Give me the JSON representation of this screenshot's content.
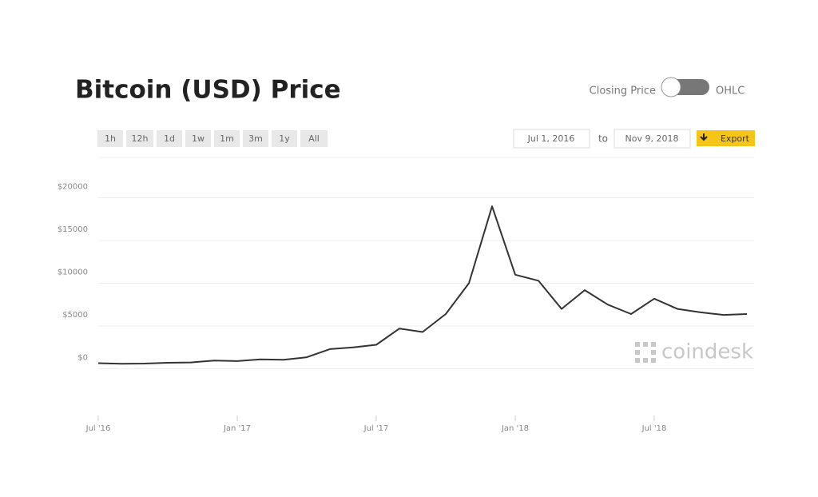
{
  "chart_data": {
    "type": "line",
    "title": "Bitcoin (USD) Price",
    "color": "#333333",
    "grid": true,
    "x": [
      "2016-07",
      "2016-08",
      "2016-09",
      "2016-10",
      "2016-11",
      "2016-12",
      "2017-01",
      "2017-02",
      "2017-03",
      "2017-04",
      "2017-05",
      "2017-06",
      "2017-07",
      "2017-08",
      "2017-09",
      "2017-10",
      "2017-11",
      "2017-12",
      "2018-01",
      "2018-02",
      "2018-03",
      "2018-04",
      "2018-05",
      "2018-06",
      "2018-07",
      "2018-08",
      "2018-09",
      "2018-10",
      "2018-11"
    ],
    "values": [
      650,
      580,
      610,
      700,
      740,
      960,
      900,
      1100,
      1050,
      1350,
      2300,
      2500,
      2800,
      4700,
      4300,
      6400,
      10000,
      19000,
      11000,
      10300,
      7000,
      9200,
      7500,
      6400,
      8200,
      7000,
      6600,
      6300,
      6400
    ],
    "xlim": [
      "2016-07",
      "2018-11"
    ],
    "xticks": [
      {
        "value": "2016-07",
        "label": "Jul '16"
      },
      {
        "value": "2017-01",
        "label": "Jan '17"
      },
      {
        "value": "2017-07",
        "label": "Jul '17"
      },
      {
        "value": "2018-01",
        "label": "Jan '18"
      },
      {
        "value": "2018-07",
        "label": "Jul '18"
      }
    ],
    "ylim": [
      -5000,
      25000
    ],
    "yticks": [
      {
        "value": 0,
        "label": "$0"
      },
      {
        "value": 5000,
        "label": "$5000"
      },
      {
        "value": 10000,
        "label": "$10000"
      },
      {
        "value": 15000,
        "label": "$15000"
      },
      {
        "value": 20000,
        "label": "$20000"
      }
    ]
  },
  "controls": {
    "toggle_left": "Closing Price",
    "toggle_right": "OHLC",
    "ranges": [
      "1h",
      "12h",
      "1d",
      "1w",
      "1m",
      "3m",
      "1y",
      "All"
    ],
    "from": "Jul 1, 2016",
    "to_label": "to",
    "to": "Nov 9, 2018",
    "export": "Export"
  },
  "watermark": "coindesk"
}
